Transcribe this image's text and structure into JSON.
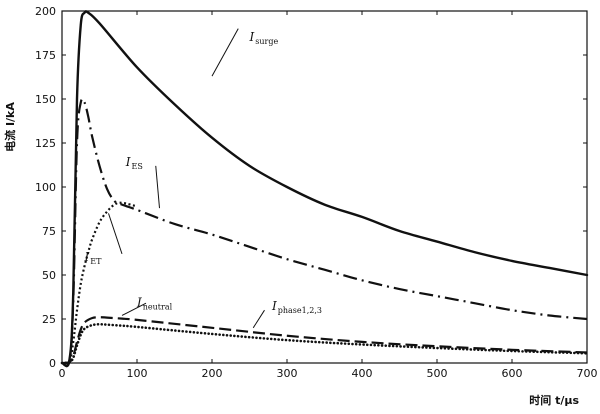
{
  "chart_data": {
    "type": "line",
    "xlabel": "时间 t/μs",
    "ylabel": "电流 I/kA",
    "xlim": [
      0,
      700
    ],
    "ylim": [
      0,
      200
    ],
    "xticks": [
      0,
      100,
      200,
      300,
      400,
      500,
      600,
      700
    ],
    "yticks": [
      0,
      25,
      50,
      75,
      100,
      125,
      150,
      175,
      200
    ],
    "grid": false,
    "series": [
      {
        "key": "surge",
        "name": "I",
        "subscript": "surge",
        "style": "solid",
        "x": [
          0,
          10,
          15,
          20,
          25,
          30,
          35,
          50,
          100,
          150,
          200,
          250,
          300,
          350,
          400,
          450,
          500,
          550,
          600,
          650,
          700
        ],
        "y": [
          0,
          2,
          40,
          150,
          192,
          199,
          199,
          193,
          168,
          147,
          128,
          112,
          100,
          90,
          83,
          75,
          69,
          63,
          58,
          54,
          50
        ]
      },
      {
        "key": "es",
        "name": "I",
        "subscript": "ES",
        "style": "dashdot",
        "x": [
          0,
          10,
          15,
          20,
          25,
          30,
          35,
          40,
          50,
          60,
          70,
          80,
          100,
          150,
          200,
          250,
          300,
          350,
          400,
          450,
          500,
          550,
          600,
          650,
          700
        ],
        "y": [
          0,
          1,
          35,
          125,
          148,
          148,
          140,
          129,
          112,
          99,
          92,
          90,
          87,
          79,
          73,
          66,
          59,
          53,
          47,
          42,
          38,
          34,
          30,
          27,
          25
        ]
      },
      {
        "key": "et",
        "name": "I",
        "subscript": "ET",
        "style": "densedot",
        "x": [
          0,
          10,
          15,
          20,
          25,
          30,
          35,
          40,
          50,
          60,
          70,
          80,
          100
        ],
        "y": [
          0,
          1,
          12,
          30,
          45,
          55,
          63,
          70,
          80,
          86,
          90,
          91,
          89
        ]
      },
      {
        "key": "neutral",
        "name": "I",
        "subscript": "neutral",
        "style": "longdash",
        "x": [
          0,
          10,
          15,
          20,
          25,
          30,
          40,
          50,
          60,
          80,
          100,
          200,
          300,
          400,
          500,
          600,
          700
        ],
        "y": [
          0,
          0.5,
          4,
          12,
          19,
          23,
          25.5,
          26,
          25.8,
          25.2,
          24.5,
          20,
          15.5,
          12,
          9.5,
          7.5,
          6
        ]
      },
      {
        "key": "phase",
        "name": "I",
        "subscript": "phase1,2,3",
        "style": "dotted",
        "x": [
          0,
          10,
          15,
          20,
          25,
          30,
          40,
          50,
          60,
          80,
          100,
          200,
          300,
          400,
          500,
          600,
          700
        ],
        "y": [
          0,
          0.5,
          3,
          10,
          16,
          19.5,
          21.5,
          22,
          21.8,
          21.2,
          20.5,
          16.5,
          13,
          10.5,
          8.5,
          6.8,
          5.5
        ]
      }
    ]
  }
}
